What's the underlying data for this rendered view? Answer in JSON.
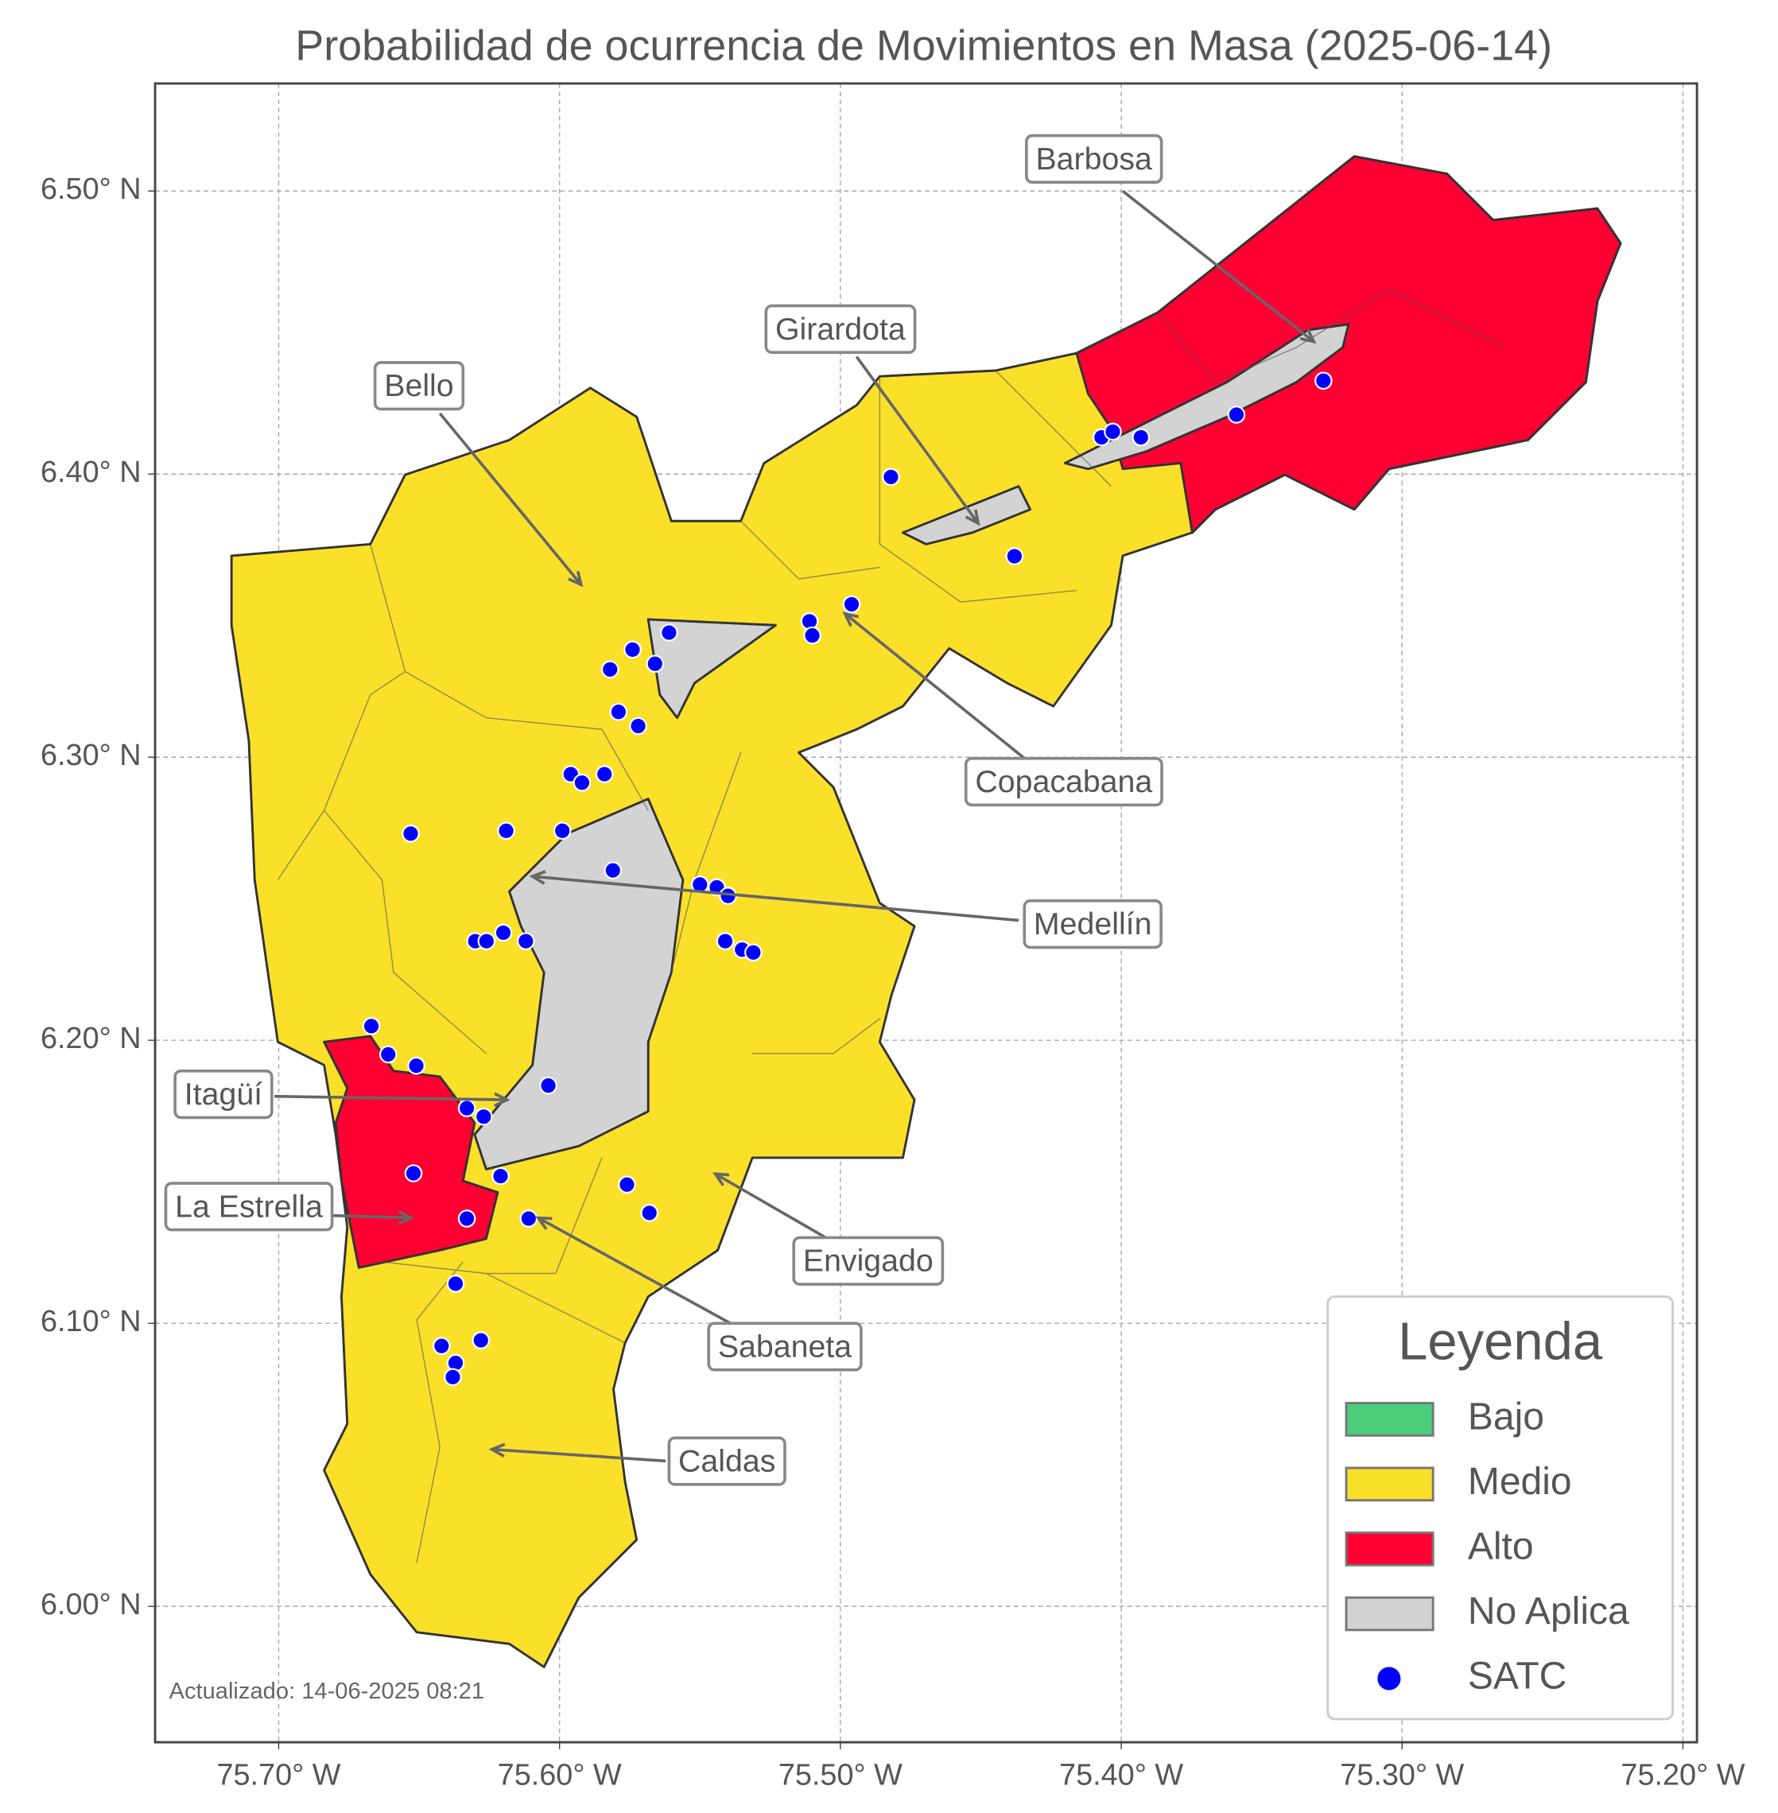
{
  "map": {
    "title": "Probabilidad de ocurrencia de Movimientos en Masa (2025-06-14)",
    "xlim": [
      -75.744,
      -75.195
    ],
    "ylim": [
      5.952,
      6.538
    ],
    "xticks": [
      {
        "value": -75.7,
        "label": "75.70° W"
      },
      {
        "value": -75.6,
        "label": "75.60° W"
      },
      {
        "value": -75.5,
        "label": "75.50° W"
      },
      {
        "value": -75.4,
        "label": "75.40° W"
      },
      {
        "value": -75.3,
        "label": "75.30° W"
      },
      {
        "value": -75.2,
        "label": "75.20° W"
      }
    ],
    "yticks": [
      {
        "value": 6.0,
        "label": "6.00° N"
      },
      {
        "value": 6.1,
        "label": "6.10° N"
      },
      {
        "value": 6.2,
        "label": "6.20° N"
      },
      {
        "value": 6.3,
        "label": "6.30° N"
      },
      {
        "value": 6.4,
        "label": "6.40° N"
      },
      {
        "value": 6.5,
        "label": "6.50° N"
      }
    ],
    "grid": true,
    "annotations": [
      "Barbosa",
      "Girardota",
      "Bello",
      "Copacabana",
      "Medellín",
      "Itagüí",
      "La Estrella",
      "Envigado",
      "Sabaneta",
      "Caldas"
    ],
    "legend": {
      "title": "Leyenda",
      "items": [
        {
          "label": "Bajo",
          "color": "#4ccd7a"
        },
        {
          "label": "Medio",
          "color": "#fbe02a"
        },
        {
          "label": "Alto",
          "color": "#ff0033"
        },
        {
          "label": "No Aplica",
          "color": "#d3d3d3"
        },
        {
          "label": "SATC",
          "color": "#0000ff"
        }
      ]
    },
    "points": {
      "lon": [
        -75.482,
        -75.496,
        -75.511,
        -75.51,
        -75.561,
        -75.574,
        -75.582,
        -75.566,
        -75.579,
        -75.572,
        -75.596,
        -75.592,
        -75.584,
        -75.599,
        -75.619,
        -75.653,
        -75.581,
        -75.55,
        -75.544,
        -75.54,
        -75.63,
        -75.626,
        -75.62,
        -75.612,
        -75.541,
        -75.535,
        -75.531,
        -75.667,
        -75.661,
        -75.651,
        -75.633,
        -75.627,
        -75.604,
        -75.652,
        -75.621,
        -75.576,
        -75.568,
        -75.633,
        -75.611,
        -75.637,
        -75.642,
        -75.628,
        -75.637,
        -75.638,
        -75.407,
        -75.403,
        -75.393,
        -75.359,
        -75.328,
        -75.438
      ],
      "lat": [
        6.399,
        6.354,
        6.348,
        6.343,
        6.344,
        6.338,
        6.331,
        6.333,
        6.316,
        6.311,
        6.294,
        6.291,
        6.294,
        6.274,
        6.274,
        6.273,
        6.26,
        6.255,
        6.254,
        6.251,
        6.235,
        6.235,
        6.238,
        6.235,
        6.235,
        6.232,
        6.231,
        6.205,
        6.195,
        6.191,
        6.176,
        6.173,
        6.184,
        6.153,
        6.152,
        6.149,
        6.139,
        6.137,
        6.137,
        6.114,
        6.092,
        6.094,
        6.086,
        6.081,
        6.413,
        6.415,
        6.413,
        6.421,
        6.433,
        6.371
      ]
    },
    "footer": "Actualizado: 14-06-2025 08:21"
  }
}
